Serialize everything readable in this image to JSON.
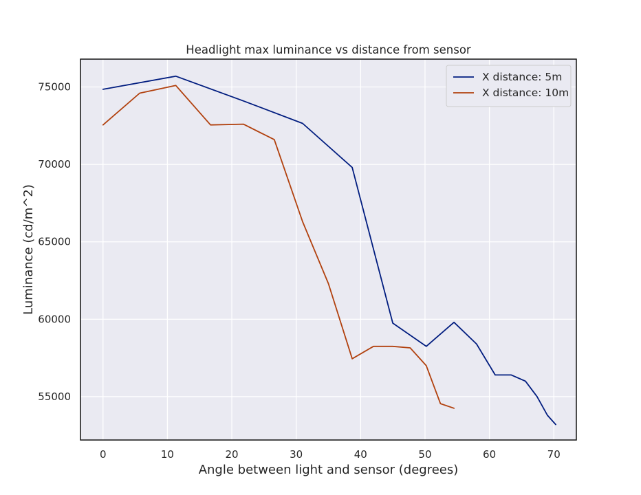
{
  "chart_data": {
    "type": "line",
    "title": "Headlight max luminance vs distance from sensor",
    "xlabel": "Angle between light and sensor (degrees)",
    "ylabel": "Luminance (cd/m^2)",
    "xlim": [
      -3.5,
      73.5
    ],
    "ylim": [
      52200,
      76800
    ],
    "xticks": [
      0,
      10,
      20,
      30,
      40,
      50,
      60,
      70
    ],
    "yticks": [
      55000,
      60000,
      65000,
      70000,
      75000
    ],
    "grid": true,
    "legend_position": "upper right",
    "series": [
      {
        "name": "X distance: 5m",
        "color": "#001c7f",
        "x": [
          0,
          11.3,
          21.8,
          31.0,
          38.7,
          45.0,
          50.2,
          54.5,
          58.0,
          60.9,
          63.4,
          65.6,
          67.4,
          69.0,
          70.3
        ],
        "y": [
          74850,
          75700,
          74100,
          72650,
          69800,
          59750,
          58250,
          59800,
          58400,
          56400,
          56400,
          56000,
          55000,
          53800,
          53200
        ]
      },
      {
        "name": "X distance: 10m",
        "color": "#b1400d",
        "x": [
          0,
          5.7,
          11.3,
          16.7,
          21.8,
          26.6,
          31.0,
          35.0,
          38.7,
          42.0,
          45.0,
          47.7,
          50.2,
          52.4,
          54.5
        ],
        "y": [
          72550,
          74600,
          75100,
          72550,
          72600,
          71600,
          66300,
          62300,
          57450,
          58250,
          58250,
          58150,
          57000,
          54550,
          54250
        ]
      }
    ]
  }
}
